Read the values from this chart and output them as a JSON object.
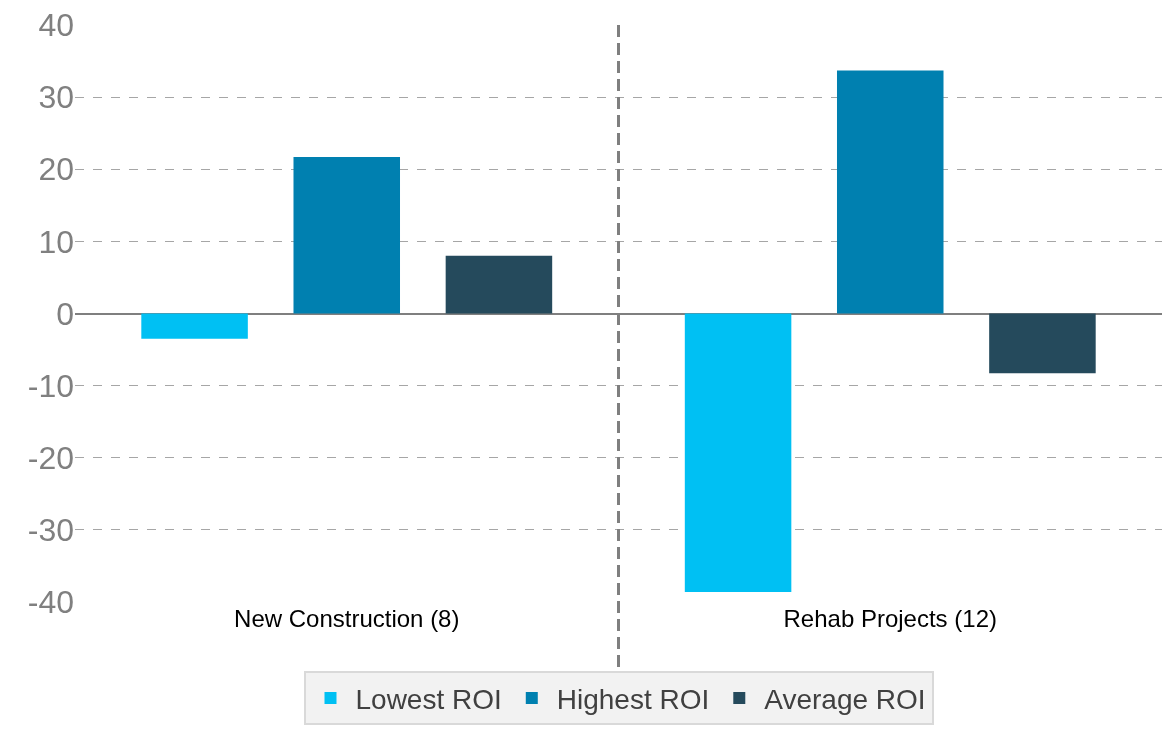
{
  "chart_data": {
    "type": "bar",
    "categories": [
      "New Construction (8)",
      "Rehab Projects (12)"
    ],
    "series": [
      {
        "name": "Lowest ROI",
        "color": "#00c0f3",
        "values": [
          -3.5,
          -38.6
        ]
      },
      {
        "name": "Highest ROI",
        "color": "#0080b0",
        "values": [
          21.7,
          33.7
        ]
      },
      {
        "name": "Average ROI",
        "color": "#254a5c",
        "values": [
          8.0,
          -8.3
        ]
      }
    ],
    "ylim": [
      -40,
      40
    ],
    "yticks": [
      -40,
      -30,
      -20,
      -10,
      0,
      10,
      20,
      30,
      40
    ],
    "grid": "y",
    "legend": "bottom"
  }
}
